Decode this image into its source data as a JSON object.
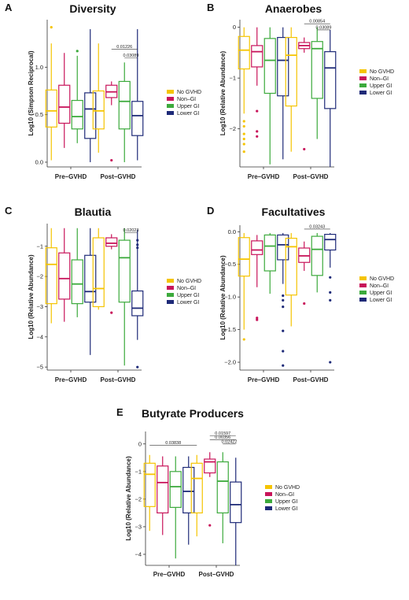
{
  "colors": {
    "No GVHD": "#F5C400",
    "Non-GI": "#C8145A",
    "Upper GI": "#3CAA3C",
    "Lower GI": "#1E2A78"
  },
  "chart_data": [
    {
      "type": "box",
      "letter": "A",
      "title": "Diversity",
      "ylabel": "Log10 (Simpson Reciprocal)",
      "categories": [
        "Pre–GVHD",
        "Post–GVHD"
      ],
      "legend": [
        "No GVHD",
        "Non–GI",
        "Upper GI",
        "Lower GI"
      ],
      "ylim": [
        -0.05,
        1.5
      ],
      "yticks": [
        0.0,
        0.5,
        1.0
      ],
      "yticklabels": [
        "0.0",
        "0.5",
        "1.0"
      ],
      "boxes": [
        [
          {
            "min": 0.02,
            "q1": 0.37,
            "med": 0.54,
            "q3": 0.76,
            "max": 1.25,
            "out": [
              1.42
            ]
          },
          {
            "min": 0.15,
            "q1": 0.41,
            "med": 0.58,
            "q3": 0.81,
            "max": 1.15,
            "out": []
          },
          {
            "min": 0.2,
            "q1": 0.35,
            "med": 0.48,
            "q3": 0.65,
            "max": 1.12,
            "out": [
              1.17
            ]
          },
          {
            "min": 0.0,
            "q1": 0.25,
            "med": 0.56,
            "q3": 0.73,
            "max": 1.4,
            "out": []
          }
        ],
        [
          {
            "min": 0.1,
            "q1": 0.35,
            "med": 0.54,
            "q3": 0.75,
            "max": 1.25,
            "out": []
          },
          {
            "min": 0.6,
            "q1": 0.68,
            "med": 0.74,
            "q3": 0.81,
            "max": 0.85,
            "out": [
              0.02
            ]
          },
          {
            "min": 0.0,
            "q1": 0.35,
            "med": 0.64,
            "q3": 0.85,
            "max": 1.05,
            "out": []
          },
          {
            "min": 0.02,
            "q1": 0.28,
            "med": 0.49,
            "q3": 0.64,
            "max": 1.4,
            "out": []
          }
        ]
      ],
      "annotations": [
        {
          "text": "0.01226",
          "g": 1,
          "from": 1,
          "to": 3,
          "y": 1.19
        },
        {
          "text": "0.03089",
          "g": 1,
          "from": 2,
          "to": 3,
          "y": 1.1
        }
      ]
    },
    {
      "type": "box",
      "letter": "B",
      "title": "Anaerobes",
      "ylabel": "Log10 (Relative Abundance)",
      "categories": [
        "Pre–GVHD",
        "Post–GVHD"
      ],
      "legend": [
        "No GVHD",
        "Non–GI",
        "Upper GI",
        "Lower GI"
      ],
      "ylim": [
        -2.75,
        0.15
      ],
      "yticks": [
        0,
        -1,
        -2
      ],
      "yticklabels": [
        "0",
        "−1",
        "−2"
      ],
      "boxes": [
        [
          {
            "min": -1.7,
            "q1": -0.82,
            "med": -0.45,
            "q3": -0.18,
            "max": 0,
            "out": [
              -1.85,
              -1.95,
              -2.1,
              -2.2,
              -2.3,
              -2.45
            ]
          },
          {
            "min": -1.15,
            "q1": -0.78,
            "med": -0.48,
            "q3": -0.36,
            "max": 0,
            "out": [
              -1.65,
              -2.05,
              -2.15
            ]
          },
          {
            "min": -2.7,
            "q1": -1.3,
            "med": -0.65,
            "q3": -0.22,
            "max": 0,
            "out": []
          },
          {
            "min": -2.6,
            "q1": -1.35,
            "med": -0.65,
            "q3": -0.2,
            "max": 0,
            "out": []
          }
        ],
        [
          {
            "min": -2.45,
            "q1": -1.55,
            "med": -0.55,
            "q3": -0.2,
            "max": 0,
            "out": []
          },
          {
            "min": -0.5,
            "q1": -0.42,
            "med": -0.36,
            "q3": -0.3,
            "max": -0.2,
            "out": [
              -2.4
            ]
          },
          {
            "min": -2.2,
            "q1": -1.4,
            "med": -0.42,
            "q3": -0.28,
            "max": 0,
            "out": []
          },
          {
            "min": -2.75,
            "q1": -1.6,
            "med": -0.8,
            "q3": -0.48,
            "max": -0.05,
            "out": []
          }
        ]
      ],
      "annotations": [
        {
          "text": "0.00854",
          "g": 1,
          "from": 1,
          "to": 3,
          "y": 0.07
        },
        {
          "text": "0.03089",
          "g": 1,
          "from": 2,
          "to": 3,
          "y": -0.05
        }
      ]
    },
    {
      "type": "box",
      "letter": "C",
      "title": "Blautia",
      "ylabel": "Log10 (Relative Abundance)",
      "categories": [
        "Pre–GVHD",
        "Post–GVHD"
      ],
      "legend": [
        "No GVHD",
        "Non–GI",
        "Upper GI",
        "Lower GI"
      ],
      "ylim": [
        -5.1,
        -0.25
      ],
      "yticks": [
        -1,
        -2,
        -3,
        -4,
        -5
      ],
      "yticklabels": [
        "−1",
        "−2",
        "−3",
        "−4",
        "−5"
      ],
      "boxes": [
        [
          {
            "min": -3.55,
            "q1": -2.9,
            "med": -1.6,
            "q3": -1.05,
            "max": -0.4,
            "out": []
          },
          {
            "min": -3.5,
            "q1": -2.75,
            "med": -2.07,
            "q3": -1.22,
            "max": -0.4,
            "out": []
          },
          {
            "min": -3.35,
            "q1": -2.9,
            "med": -2.25,
            "q3": -1.45,
            "max": -0.4,
            "out": []
          },
          {
            "min": -4.6,
            "q1": -2.85,
            "med": -2.5,
            "q3": -1.3,
            "max": -0.4,
            "out": []
          }
        ],
        [
          {
            "min": -3.1,
            "q1": -3.0,
            "med": -2.4,
            "q3": -0.72,
            "max": -0.4,
            "out": []
          },
          {
            "min": -1.1,
            "q1": -1.0,
            "med": -0.9,
            "q3": -0.72,
            "max": -0.6,
            "out": [
              -3.2
            ]
          },
          {
            "min": -4.95,
            "q1": -2.85,
            "med": -1.38,
            "q3": -0.8,
            "max": -0.4,
            "out": []
          },
          {
            "min": -4.1,
            "q1": -3.3,
            "med": -3.05,
            "q3": -2.48,
            "max": -0.45,
            "out": [
              -0.8,
              -0.95,
              -1.05,
              -5.0
            ]
          }
        ]
      ],
      "annotations": [
        {
          "text": "0.02023",
          "g": 1,
          "from": 2,
          "to": 3,
          "y": -0.55
        }
      ]
    },
    {
      "type": "box",
      "letter": "D",
      "title": "Facultatives",
      "ylabel": "Log10 (Relative Abundance)",
      "categories": [
        "Pre–GVHD",
        "Post–GVHD"
      ],
      "legend": [
        "No GVHD",
        "Non–GI",
        "Upper GI",
        "Lower GI"
      ],
      "ylim": [
        -2.12,
        0.1
      ],
      "yticks": [
        0,
        -0.5,
        -1.0,
        -1.5,
        -2.0
      ],
      "yticklabels": [
        "0.0",
        "−0.5",
        "−1.0",
        "−1.5",
        "−2.0"
      ],
      "boxes": [
        [
          {
            "min": -1.5,
            "q1": -0.68,
            "med": -0.42,
            "q3": -0.09,
            "max": -0.02,
            "out": [
              -1.65
            ]
          },
          {
            "min": -0.85,
            "q1": -0.35,
            "med": -0.28,
            "q3": -0.14,
            "max": -0.05,
            "out": [
              -1.32,
              -1.35
            ]
          },
          {
            "min": -0.95,
            "q1": -0.6,
            "med": -0.22,
            "q3": -0.05,
            "max": -0.02,
            "out": []
          },
          {
            "min": -0.8,
            "q1": -0.43,
            "med": -0.2,
            "q3": -0.05,
            "max": -0.02,
            "out": [
              -0.98,
              -1.05,
              -1.15,
              -1.52,
              -1.83,
              -2.05
            ]
          }
        ],
        [
          {
            "min": -1.45,
            "q1": -0.97,
            "med": -0.23,
            "q3": -0.1,
            "max": -0.02,
            "out": []
          },
          {
            "min": -0.6,
            "q1": -0.47,
            "med": -0.37,
            "q3": -0.25,
            "max": -0.15,
            "out": [
              -1.1
            ]
          },
          {
            "min": -0.93,
            "q1": -0.67,
            "med": -0.27,
            "q3": -0.07,
            "max": -0.02,
            "out": []
          },
          {
            "min": -0.55,
            "q1": -0.28,
            "med": -0.12,
            "q3": -0.04,
            "max": -0.02,
            "out": [
              -0.7,
              -0.93,
              -1.05,
              -2.0
            ]
          }
        ]
      ],
      "annotations": [
        {
          "text": "0.03243",
          "g": 1,
          "from": 1,
          "to": 3,
          "y": 0.04
        }
      ]
    },
    {
      "type": "box",
      "letter": "E",
      "title": "Butyrate Producers",
      "ylabel": "Log10 (Relative Abundance)",
      "categories": [
        "Pre–GVHD",
        "Post–GVHD"
      ],
      "legend": [
        "No GVHD",
        "Non–GI",
        "Upper GI",
        "Lower GI"
      ],
      "ylim": [
        -4.4,
        0.45
      ],
      "yticks": [
        0,
        -1,
        -2,
        -3,
        -4
      ],
      "yticklabels": [
        "0",
        "−1",
        "−2",
        "−3",
        "−4"
      ],
      "boxes": [
        [
          {
            "min": -3.15,
            "q1": -2.27,
            "med": -1.1,
            "q3": -0.7,
            "max": -0.4,
            "out": []
          },
          {
            "min": -3.3,
            "q1": -2.5,
            "med": -1.4,
            "q3": -0.8,
            "max": -0.45,
            "out": []
          },
          {
            "min": -4.15,
            "q1": -2.3,
            "med": -1.55,
            "q3": -1.0,
            "max": -0.45,
            "out": []
          },
          {
            "min": -3.65,
            "q1": -2.5,
            "med": -1.72,
            "q3": -0.85,
            "max": -0.45,
            "out": []
          }
        ],
        [
          {
            "min": -3.35,
            "q1": -2.5,
            "med": -1.25,
            "q3": -0.7,
            "max": -0.4,
            "out": []
          },
          {
            "min": -1.2,
            "q1": -1.05,
            "med": -0.65,
            "q3": -0.55,
            "max": -0.3,
            "out": [
              -2.95
            ]
          },
          {
            "min": -3.6,
            "q1": -2.5,
            "med": -1.35,
            "q3": -0.65,
            "max": -0.3,
            "out": []
          },
          {
            "min": -4.4,
            "q1": -2.85,
            "med": -2.2,
            "q3": -1.38,
            "max": -0.5,
            "out": []
          }
        ]
      ],
      "annotations": [
        {
          "text": "0.03838",
          "g": 0,
          "from": 0,
          "to": -1,
          "y": -0.05,
          "g2": 1,
          "to2": 0
        },
        {
          "text": "0.01597",
          "g": 1,
          "from": 1,
          "to": 3,
          "y": 0.3
        },
        {
          "text": "0.00356",
          "g": 1,
          "from": 1,
          "to": 3,
          "y": 0.15
        },
        {
          "text": "0.02422",
          "g": 1,
          "from": 2,
          "to": 3,
          "y": 0.0
        }
      ]
    }
  ]
}
